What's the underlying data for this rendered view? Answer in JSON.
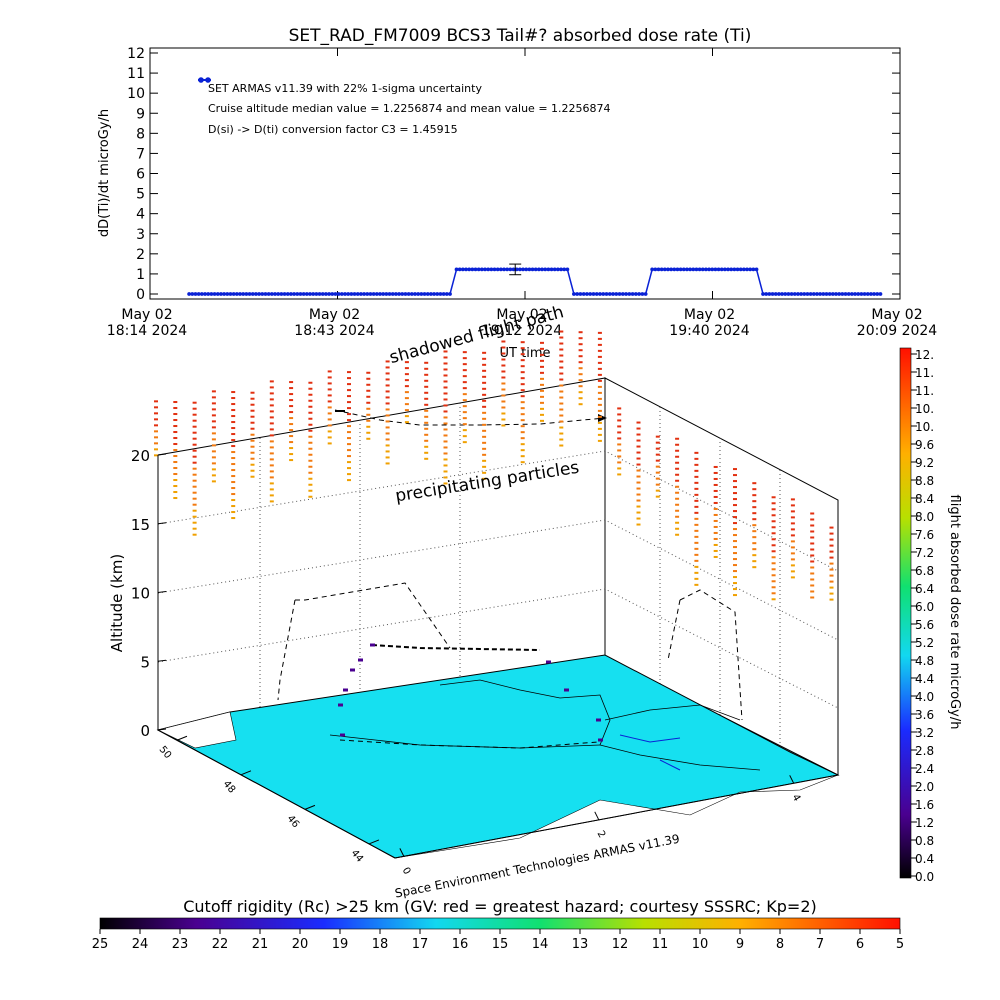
{
  "top_chart": {
    "title": "SET_RAD_FM7009  BCS3 Tail#? absorbed dose rate (Ti)",
    "ylabel": "dD(Ti)/dt microGy/h",
    "xlabel": "UT time",
    "legend_lines": [
      "SET ARMAS v11.39 with 22% 1-sigma uncertainty",
      "Cruise altitude median value = 1.2256874 and mean value = 1.2256874",
      "D(si) -> D(ti) conversion factor C3 = 1.45915"
    ],
    "x_ticks": [
      {
        "l1": "May 02",
        "l2": "18:14 2024"
      },
      {
        "l1": "May 02",
        "l2": "18:43 2024"
      },
      {
        "l1": "May 02",
        "l2": "19:12 2024"
      },
      {
        "l1": "May 02",
        "l2": "19:40 2024"
      },
      {
        "l1": "May 02",
        "l2": "20:09 2024"
      }
    ],
    "y_ticks": [
      "0",
      "1",
      "2",
      "3",
      "4",
      "5",
      "6",
      "7",
      "8",
      "9",
      "10",
      "11",
      "12"
    ]
  },
  "chart_data": [
    {
      "type": "line",
      "title": "SET_RAD_FM7009  BCS3 Tail#? absorbed dose rate (Ti)",
      "xlabel": "UT time",
      "ylabel": "dD(Ti)/dt microGy/h",
      "xlim": [
        "18:14",
        "20:09"
      ],
      "ylim": [
        0,
        12
      ],
      "series": [
        {
          "name": "SET ARMAS v11.39 with 22% 1-sigma uncertainty",
          "segments": [
            {
              "x_start": "18:20",
              "x_end": "19:00",
              "y": 0
            },
            {
              "x_start": "19:01",
              "x_end": "19:18",
              "y": 1.2256874
            },
            {
              "x_start": "19:19",
              "x_end": "19:30",
              "y": 0
            },
            {
              "x_start": "19:31",
              "x_end": "19:47",
              "y": 1.2256874
            },
            {
              "x_start": "19:48",
              "x_end": "20:06",
              "y": 0
            }
          ],
          "error_bar": {
            "x": "19:10",
            "y": 1.2256874,
            "low": 0.96,
            "high": 1.49
          }
        }
      ],
      "color": "#0a22d6"
    },
    {
      "type": "scatter",
      "title": "",
      "ylabel": "Altitude (km)",
      "z_ticks": [
        "0",
        "5",
        "10",
        "15",
        "20"
      ],
      "map_labels_left": [
        "50",
        "48",
        "46",
        "44"
      ],
      "map_labels_front": [
        "0",
        "2",
        "4"
      ],
      "annotations": [
        "shadowed flight path",
        "precipitating particles"
      ],
      "credit": "Space Environment Technologies ARMAS v11.39",
      "flight_altitude_km": 6.2
    }
  ],
  "dose_colorbar": {
    "label": "flight absorbed dose rate microGy/h",
    "ticks": [
      "12.",
      "11.",
      "11.",
      "10.",
      "10.",
      "9.6",
      "9.2",
      "8.8",
      "8.4",
      "8.0",
      "7.6",
      "7.2",
      "6.8",
      "6.4",
      "6.0",
      "5.6",
      "5.2",
      "4.8",
      "4.4",
      "4.0",
      "3.6",
      "3.2",
      "2.8",
      "2.4",
      "2.0",
      "1.6",
      "1.2",
      "0.8",
      "0.4",
      "0.0"
    ]
  },
  "rigidity_colorbar": {
    "title": "Cutoff rigidity (Rc) >25 km (GV: red = greatest hazard; courtesy SSSRC; Kp=2)",
    "ticks": [
      "25",
      "24",
      "23",
      "22",
      "21",
      "20",
      "19",
      "18",
      "17",
      "16",
      "15",
      "14",
      "13",
      "12",
      "11",
      "10",
      "9",
      "8",
      "7",
      "6",
      "5"
    ]
  },
  "colors": {
    "data_blue": "#0a22d6",
    "ocean": "#16e0f0",
    "particles_red": "#e23010",
    "particles_orange": "#f0a000"
  }
}
